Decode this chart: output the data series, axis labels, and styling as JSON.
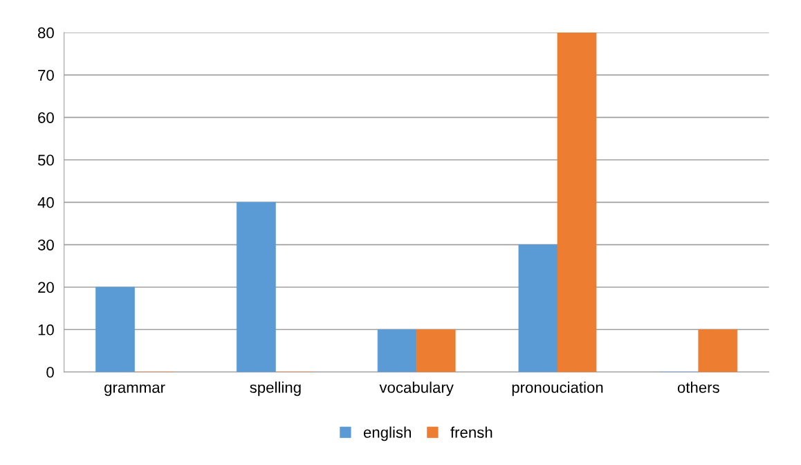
{
  "chart_data": {
    "type": "bar",
    "categories": [
      "grammar",
      "spelling",
      "vocabulary",
      "pronouciation",
      "others"
    ],
    "series": [
      {
        "name": "english",
        "color": "#5b9bd5",
        "values": [
          20,
          40,
          10,
          30,
          0
        ]
      },
      {
        "name": "frensh",
        "color": "#ed7d31",
        "values": [
          0,
          0,
          10,
          80,
          10
        ]
      }
    ],
    "ylim": [
      0,
      80
    ],
    "yticks": [
      0,
      10,
      20,
      30,
      40,
      50,
      60,
      70,
      80
    ],
    "grid": "y",
    "legend": "bottom"
  }
}
